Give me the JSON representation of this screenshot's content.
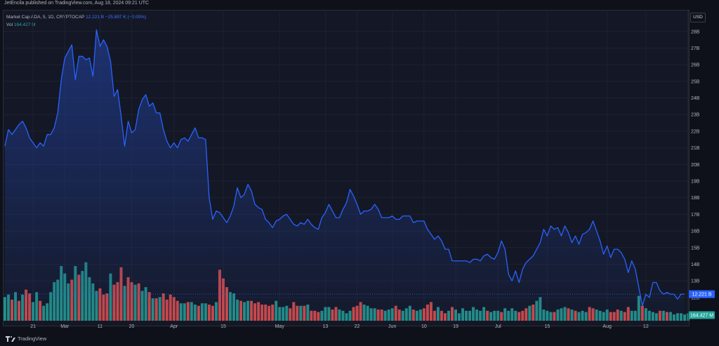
{
  "header": {
    "published_text": "JetEncila published on TradingView.com, Aug 18, 2024 09:21 UTC"
  },
  "legend": {
    "series_label": "Market Cap ADA, 5, 1D, CRYPTOCAP",
    "last_value": "12.221 B",
    "change": "−25.897 K (−0.00%)",
    "vol_label": "Vol",
    "vol_value": "164.427 M"
  },
  "currency_button": "USD",
  "footer": {
    "brand": "TradingView"
  },
  "colors": {
    "line": "#2962ff",
    "area_top": "#1f3a8a",
    "vol_up": "#26a69a",
    "vol_down": "#ef5350",
    "background": "#141826",
    "grid": "#1e2230"
  },
  "chart_data": {
    "type": "line",
    "title": "Market Cap ADA, 5, 1D, CRYPTOCAP",
    "y_unit": "B",
    "ylim": [
      10.6,
      29.3
    ],
    "yticks": [
      11,
      12,
      13,
      14,
      15,
      16,
      17,
      18,
      19,
      20,
      21,
      22,
      23,
      24,
      25,
      26,
      27,
      28
    ],
    "ytick_labels": [
      "11B",
      "12B",
      "13B",
      "14B",
      "15B",
      "16B",
      "17B",
      "18B",
      "19B",
      "20B",
      "21B",
      "22B",
      "23B",
      "24B",
      "25B",
      "26B",
      "27B",
      "28B"
    ],
    "x_labels": [
      {
        "label": "21",
        "index": 8
      },
      {
        "label": "Mar",
        "index": 17
      },
      {
        "label": "11",
        "index": 27
      },
      {
        "label": "20",
        "index": 36
      },
      {
        "label": "Apr",
        "index": 48
      },
      {
        "label": "15",
        "index": 62
      },
      {
        "label": "May",
        "index": 78
      },
      {
        "label": "13",
        "index": 91
      },
      {
        "label": "22",
        "index": 100
      },
      {
        "label": "Jun",
        "index": 110
      },
      {
        "label": "10",
        "index": 119
      },
      {
        "label": "19",
        "index": 128
      },
      {
        "label": "Jul",
        "index": 140
      },
      {
        "label": "15",
        "index": 154
      },
      {
        "label": "Aug",
        "index": 171
      },
      {
        "label": "12",
        "index": 182
      }
    ],
    "last_price_label": "12.221 B",
    "volume_label": "164.427 M",
    "series": [
      {
        "values": [
          21.1,
          22.1,
          21.8,
          22.1,
          22.4,
          22.6,
          22.2,
          21.6,
          21.3,
          21.0,
          21.3,
          21.1,
          21.8,
          21.8,
          22.2,
          23.1,
          25.1,
          26.4,
          26.8,
          27.2,
          25.1,
          26.5,
          26.5,
          26.3,
          26.4,
          25.3,
          28.1,
          27.1,
          27.5,
          27.1,
          26.2,
          24.1,
          24.5,
          22.9,
          21.1,
          22.6,
          21.9,
          22.1,
          23.3,
          23.9,
          24.2,
          23.5,
          23.7,
          23.1,
          23.1,
          22.1,
          21.4,
          21.0,
          21.3,
          21.0,
          21.5,
          21.6,
          21.4,
          21.8,
          22.2,
          21.6,
          21.6,
          21.5,
          18.0,
          16.7,
          17.2,
          17.1,
          16.8,
          16.5,
          16.9,
          17.5,
          18.6,
          18.0,
          18.2,
          18.8,
          18.4,
          17.6,
          17.4,
          17.3,
          16.7,
          16.5,
          16.2,
          16.6,
          16.7,
          16.9,
          17.0,
          16.7,
          16.4,
          16.3,
          16.5,
          16.4,
          16.7,
          16.4,
          16.2,
          16.1,
          16.8,
          17.1,
          17.6,
          17.2,
          16.8,
          16.8,
          17.3,
          17.7,
          18.5,
          18.1,
          17.6,
          17.0,
          17.2,
          17.2,
          17.3,
          17.6,
          17.3,
          16.8,
          16.8,
          16.8,
          16.9,
          16.7,
          16.7,
          16.9,
          16.9,
          16.9,
          16.5,
          16.6,
          16.6,
          16.6,
          16.1,
          15.8,
          15.5,
          15.7,
          15.4,
          14.9,
          14.9,
          14.2,
          14.2,
          14.2,
          14.2,
          14.2,
          14.1,
          14.3,
          14.3,
          14.2,
          14.5,
          14.6,
          14.4,
          14.3,
          14.7,
          15.4,
          14.9,
          13.4,
          13.0,
          13.6,
          12.9,
          13.7,
          14.1,
          14.3,
          14.5,
          14.9,
          15.3,
          16.1,
          15.7,
          16.3,
          16.1,
          16.2,
          15.7,
          16.3,
          15.9,
          15.3,
          15.7,
          15.2,
          15.8,
          15.9,
          16.1,
          16.6,
          16.0,
          15.4,
          14.6,
          15.1,
          14.4,
          14.9,
          14.9,
          14.7,
          14.3,
          13.5,
          14.2,
          13.7,
          12.6,
          11.5,
          12.2,
          12.0,
          12.9,
          12.9,
          12.4,
          12.2,
          12.3,
          12.2,
          12.2,
          11.9,
          12.2,
          12.2
        ]
      }
    ],
    "volume": {
      "values": [
        19.0,
        21.0,
        17.0,
        23.0,
        16.0,
        21.0,
        25.0,
        22.0,
        15.0,
        23.0,
        16.0,
        12.0,
        14.0,
        23.0,
        31.0,
        33.0,
        44.0,
        38.0,
        30.0,
        33.0,
        44.0,
        37.0,
        40.0,
        47.0,
        35.0,
        30.0,
        24.0,
        26.0,
        21.0,
        22.0,
        38.0,
        29.0,
        31.0,
        43.0,
        28.0,
        35.0,
        31.0,
        29.0,
        30.0,
        24.0,
        27.0,
        23.0,
        18.0,
        18.0,
        19.0,
        22.0,
        17.0,
        21.0,
        19.0,
        16.0,
        14.0,
        14.0,
        15.0,
        15.0,
        13.0,
        12.0,
        14.0,
        14.0,
        13.0,
        12.0,
        15.0,
        41.0,
        34.0,
        27.0,
        23.0,
        22.0,
        17.0,
        16.0,
        15.0,
        16.0,
        16.0,
        14.0,
        15.0,
        13.0,
        13.0,
        12.0,
        13.0,
        16.0,
        11.0,
        11.0,
        12.0,
        10.0,
        15.0,
        12.0,
        12.0,
        12.0,
        13.0,
        8.0,
        8.0,
        7.0,
        8.0,
        11.0,
        11.0,
        9.0,
        11.0,
        9.0,
        8.0,
        6.0,
        8.0,
        11.0,
        12.0,
        15.0,
        13.0,
        12.0,
        10.0,
        10.0,
        9.0,
        9.0,
        8.0,
        9.0,
        10.0,
        12.0,
        9.0,
        8.0,
        10.0,
        12.0,
        9.0,
        8.0,
        9.0,
        10.0,
        13.0,
        15.0,
        8.0,
        11.0,
        8.0,
        6.0,
        8.0,
        11.0,
        9.0,
        6.0,
        10.0,
        8.0,
        8.0,
        11.0,
        9.0,
        8.0,
        11.0,
        8.0,
        7.0,
        8.0,
        8.0,
        7.0,
        10.0,
        8.0,
        10.0,
        8.0,
        7.0,
        8.0,
        10.0,
        12.0,
        13.0,
        16.0,
        19.0,
        9.0,
        8.0,
        7.0,
        7.0,
        9.0,
        10.0,
        11.0,
        10.0,
        9.0,
        8.0,
        7.0,
        8.0,
        7.0,
        11.0,
        10.0,
        9.0,
        8.0,
        7.0,
        9.0,
        7.0,
        7.0,
        9.0,
        8.0,
        7.0,
        11.0,
        8.0,
        8.0,
        20.0,
        12.0,
        10.0,
        8.0,
        7.0,
        6.0,
        8.0,
        8.0,
        7.0,
        7.0,
        5.0,
        6.0,
        6.0,
        5.0,
        6.0
      ],
      "direction": [
        "up",
        "up",
        "down",
        "up",
        "down",
        "up",
        "down",
        "down",
        "up",
        "up",
        "down",
        "up",
        "up",
        "up",
        "up",
        "up",
        "up",
        "up",
        "up",
        "down",
        "up",
        "down",
        "up",
        "up",
        "up",
        "up",
        "up",
        "down",
        "down",
        "down",
        "up",
        "down",
        "down",
        "down",
        "up",
        "down",
        "down",
        "up",
        "down",
        "up",
        "up",
        "down",
        "up",
        "down",
        "up",
        "down",
        "down",
        "down",
        "down",
        "down",
        "up",
        "up",
        "down",
        "up",
        "up",
        "down",
        "up",
        "up",
        "down",
        "down",
        "up",
        "down",
        "down",
        "down",
        "up",
        "up",
        "up",
        "down",
        "up",
        "up",
        "down",
        "down",
        "down",
        "down",
        "down",
        "down",
        "down",
        "up",
        "up",
        "up",
        "up",
        "down",
        "down",
        "down",
        "up",
        "down",
        "up",
        "down",
        "down",
        "down",
        "up",
        "up",
        "up",
        "down",
        "down",
        "up",
        "up",
        "up",
        "up",
        "down",
        "down",
        "down",
        "up",
        "up",
        "up",
        "up",
        "down",
        "down",
        "up",
        "up",
        "up",
        "down",
        "down",
        "up",
        "up",
        "up",
        "down",
        "up",
        "up",
        "down",
        "down",
        "down",
        "down",
        "up",
        "down",
        "down",
        "up",
        "down",
        "up",
        "up",
        "up",
        "up",
        "up",
        "up",
        "up",
        "up",
        "up",
        "down",
        "up",
        "up",
        "up",
        "down",
        "up",
        "up",
        "up",
        "up",
        "down",
        "down",
        "down",
        "up",
        "down",
        "up",
        "up",
        "up",
        "up",
        "up",
        "down",
        "up",
        "up",
        "up",
        "down",
        "up",
        "down",
        "up",
        "up",
        "up",
        "down",
        "down",
        "up",
        "up",
        "up",
        "up",
        "down",
        "down",
        "down",
        "up",
        "down",
        "down",
        "up",
        "up",
        "up",
        "down",
        "up",
        "up",
        "up",
        "up",
        "down",
        "up",
        "down",
        "up",
        "up",
        "up",
        "up",
        "up",
        "up"
      ]
    }
  }
}
